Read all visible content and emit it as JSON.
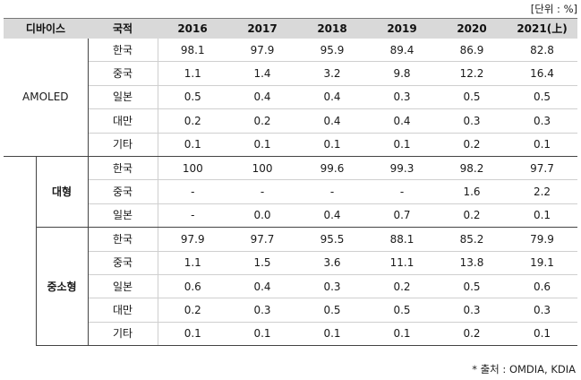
{
  "unit_label": "[단위 : %]",
  "header": {
    "device": "디바이스",
    "country": "국적",
    "years": [
      "2016",
      "2017",
      "2018",
      "2019",
      "2020",
      "2021(上)"
    ]
  },
  "groups": [
    {
      "device": "AMOLED",
      "rows": [
        {
          "country": "한국",
          "values": [
            "98.1",
            "97.9",
            "95.9",
            "89.4",
            "86.9",
            "82.8"
          ]
        },
        {
          "country": "중국",
          "values": [
            "1.1",
            "1.4",
            "3.2",
            "9.8",
            "12.2",
            "16.4"
          ]
        },
        {
          "country": "일본",
          "values": [
            "0.5",
            "0.4",
            "0.4",
            "0.3",
            "0.5",
            "0.5"
          ]
        },
        {
          "country": "대만",
          "values": [
            "0.2",
            "0.2",
            "0.4",
            "0.4",
            "0.3",
            "0.3"
          ]
        },
        {
          "country": "기타",
          "values": [
            "0.1",
            "0.1",
            "0.1",
            "0.1",
            "0.2",
            "0.1"
          ]
        }
      ]
    },
    {
      "device": "대형",
      "rows": [
        {
          "country": "한국",
          "values": [
            "100",
            "100",
            "99.6",
            "99.3",
            "98.2",
            "97.7"
          ]
        },
        {
          "country": "중국",
          "values": [
            "-",
            "-",
            "-",
            "-",
            "1.6",
            "2.2"
          ]
        },
        {
          "country": "일본",
          "values": [
            "-",
            "0.0",
            "0.4",
            "0.7",
            "0.2",
            "0.1"
          ]
        }
      ]
    },
    {
      "device": "중소형",
      "rows": [
        {
          "country": "한국",
          "values": [
            "97.9",
            "97.7",
            "95.5",
            "88.1",
            "85.2",
            "79.9"
          ]
        },
        {
          "country": "중국",
          "values": [
            "1.1",
            "1.5",
            "3.6",
            "11.1",
            "13.8",
            "19.1"
          ]
        },
        {
          "country": "일본",
          "values": [
            "0.6",
            "0.4",
            "0.3",
            "0.2",
            "0.5",
            "0.6"
          ]
        },
        {
          "country": "대만",
          "values": [
            "0.2",
            "0.3",
            "0.5",
            "0.5",
            "0.3",
            "0.3"
          ]
        },
        {
          "country": "기타",
          "values": [
            "0.1",
            "0.1",
            "0.1",
            "0.1",
            "0.2",
            "0.1"
          ]
        }
      ]
    }
  ],
  "source": "* 출처 : OMDIA, KDIA"
}
